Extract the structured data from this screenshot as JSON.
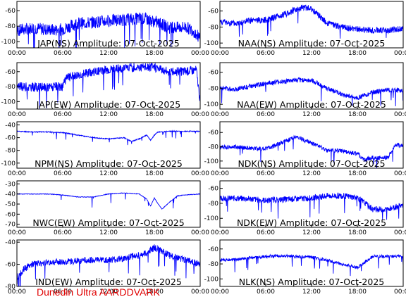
{
  "footer": "Dunedin Ultra AARDDVARK",
  "colors": {
    "trace": "#0000ff",
    "axis": "#000000",
    "footer": "#e00000"
  },
  "chart_data": [
    {
      "type": "line",
      "title": "JAP(NS) Amplitude: 07-Oct-2025",
      "xticks": [
        "00:00",
        "06:00",
        "12:00",
        "18:00",
        "00:00"
      ],
      "yticks": [
        -60,
        -80,
        -100
      ],
      "ylim": [
        -108,
        -48
      ],
      "noise": 8,
      "baseline": {
        "hours": [
          0,
          2,
          3.5,
          5,
          6,
          7,
          8,
          9,
          10,
          11,
          12,
          13,
          14,
          15,
          16,
          17,
          18,
          19,
          20,
          21,
          22,
          23,
          23.9,
          24
        ],
        "values": [
          -86,
          -82,
          -84,
          -85,
          -84,
          -80,
          -76,
          -76,
          -75,
          -74,
          -73,
          -72,
          -72,
          -71,
          -70,
          -71,
          -74,
          -78,
          -82,
          -82,
          -81,
          -85,
          -95,
          -100
        ]
      }
    },
    {
      "type": "line",
      "title": "NAA(NS) Amplitude: 07-Oct-2025",
      "xticks": [
        "00:00",
        "06:00",
        "12:00",
        "18:00",
        "00:00"
      ],
      "yticks": [
        -60,
        -80,
        -100
      ],
      "ylim": [
        -106,
        -48
      ],
      "noise": 4,
      "baseline": {
        "hours": [
          0,
          2,
          4,
          6,
          8,
          10,
          11,
          12,
          13,
          14,
          16,
          18,
          20,
          22,
          24
        ],
        "values": [
          -73,
          -76,
          -72,
          -71,
          -66,
          -58,
          -55,
          -58,
          -66,
          -75,
          -80,
          -83,
          -84,
          -84,
          -82
        ]
      }
    },
    {
      "type": "line",
      "title": "JAP(EW) Amplitude: 07-Oct-2025",
      "xticks": [
        "00:00",
        "06:00",
        "12:00",
        "18:00",
        "00:00"
      ],
      "yticks": [
        -60,
        -80,
        -100
      ],
      "ylim": [
        -110,
        -48
      ],
      "noise": 6,
      "baseline": {
        "hours": [
          0,
          3,
          6,
          6.5,
          8,
          10,
          12,
          14,
          16,
          18,
          20,
          22,
          23.5,
          23.9,
          24
        ],
        "values": [
          -80,
          -81,
          -80,
          -68,
          -64,
          -60,
          -57,
          -55,
          -54,
          -54,
          -60,
          -60,
          -58,
          -92,
          -100
        ]
      }
    },
    {
      "type": "line",
      "title": "NAA(EW) Amplitude: 07-Oct-2025",
      "xticks": [
        "00:00",
        "06:00",
        "12:00",
        "18:00",
        "00:00"
      ],
      "yticks": [
        -60,
        -80,
        -100
      ],
      "ylim": [
        -106,
        -48
      ],
      "noise": 3,
      "baseline": {
        "hours": [
          0,
          2,
          4,
          6,
          8,
          10,
          12,
          14,
          16,
          18,
          20,
          22,
          24
        ],
        "values": [
          -80,
          -81,
          -78,
          -74,
          -72,
          -70,
          -70,
          -80,
          -88,
          -92,
          -85,
          -82,
          -83
        ]
      }
    },
    {
      "type": "line",
      "title": "NPM(NS) Amplitude: 07-Oct-2025",
      "xticks": [
        "00:00",
        "06:00",
        "12:00",
        "18:00",
        "00:00"
      ],
      "yticks": [
        -40,
        -60,
        -80,
        -100
      ],
      "ylim": [
        -108,
        -35
      ],
      "noise": 0.7,
      "baseline": {
        "hours": [
          0,
          2,
          4,
          6,
          8,
          10,
          12,
          14,
          15,
          16,
          17,
          17.5,
          18,
          18.5,
          19,
          20,
          22,
          24
        ],
        "values": [
          -50,
          -51,
          -51,
          -52,
          -56,
          -60,
          -62,
          -60,
          -66,
          -62,
          -56,
          -64,
          -56,
          -51,
          -51,
          -50,
          -50,
          -50
        ]
      }
    },
    {
      "type": "line",
      "title": "NDK(NS) Amplitude: 07-Oct-2025",
      "xticks": [
        "00:00",
        "06:00",
        "12:00",
        "18:00",
        "00:00"
      ],
      "yticks": [
        -60,
        -80,
        -100
      ],
      "ylim": [
        -110,
        -45
      ],
      "noise": 3,
      "baseline": {
        "hours": [
          0,
          2,
          4,
          6,
          8,
          10,
          12,
          14,
          16,
          18,
          19,
          20,
          21,
          22,
          23,
          24
        ],
        "values": [
          -81,
          -80,
          -82,
          -83,
          -75,
          -66,
          -75,
          -85,
          -86,
          -90,
          -98,
          -95,
          -96,
          -95,
          -78,
          -78
        ]
      }
    },
    {
      "type": "line",
      "title": "NWC(EW) Amplitude: 07-Oct-2025",
      "xticks": [
        "00:00",
        "06:00",
        "12:00",
        "18:00",
        "00:00"
      ],
      "yticks": [
        -30,
        -40,
        -50,
        -60,
        -70
      ],
      "ylim": [
        -73,
        -27
      ],
      "noise": 0.3,
      "baseline": {
        "hours": [
          0,
          2,
          4,
          6,
          8,
          10,
          12,
          14,
          16,
          17,
          17.5,
          18,
          18.5,
          19,
          20,
          21,
          22,
          24
        ],
        "values": [
          -40,
          -40,
          -40,
          -41,
          -43,
          -43,
          -40,
          -39,
          -40,
          -45,
          -52,
          -44,
          -50,
          -55,
          -48,
          -42,
          -41,
          -40
        ]
      }
    },
    {
      "type": "line",
      "title": "NDK(EW) Amplitude: 07-Oct-2025",
      "xticks": [
        "00:00",
        "06:00",
        "12:00",
        "18:00",
        "00:00"
      ],
      "yticks": [
        -60,
        -80,
        -100
      ],
      "ylim": [
        -112,
        -50
      ],
      "noise": 4,
      "baseline": {
        "hours": [
          0,
          2,
          4,
          6,
          8,
          10,
          12,
          14,
          16,
          18,
          20,
          22,
          24
        ],
        "values": [
          -74,
          -73,
          -74,
          -76,
          -75,
          -74,
          -73,
          -70,
          -70,
          -72,
          -88,
          -88,
          -82
        ]
      }
    },
    {
      "type": "line",
      "title": "IND(EW) Amplitude: 07-Oct-2025",
      "xticks": [
        "00:00",
        "06:00",
        "12:00",
        "18:00",
        "00:00"
      ],
      "yticks": [
        -40,
        -60,
        -80
      ],
      "ylim": [
        -80,
        -38
      ],
      "noise": 3,
      "baseline": {
        "hours": [
          0,
          1,
          2,
          4,
          6,
          8,
          10,
          12,
          14,
          15,
          16,
          17,
          18,
          19,
          20,
          22,
          24
        ],
        "values": [
          -72,
          -64,
          -60,
          -58,
          -58,
          -57,
          -56,
          -56,
          -55,
          -53,
          -52,
          -50,
          -45,
          -48,
          -52,
          -56,
          -60
        ]
      }
    },
    {
      "type": "line",
      "title": "NLK(NS) Amplitude: 07-Oct-2025",
      "xticks": [
        "00:00",
        "06:00",
        "12:00",
        "18:00",
        "00:00"
      ],
      "yticks": [
        -60,
        -80,
        -100
      ],
      "ylim": [
        -110,
        -48
      ],
      "noise": 2,
      "baseline": {
        "hours": [
          0,
          2,
          4,
          6,
          8,
          10,
          12,
          14,
          16,
          18,
          20,
          22,
          24
        ],
        "values": [
          -75,
          -74,
          -72,
          -70,
          -69,
          -70,
          -71,
          -75,
          -80,
          -85,
          -70,
          -70,
          -70
        ]
      }
    }
  ]
}
